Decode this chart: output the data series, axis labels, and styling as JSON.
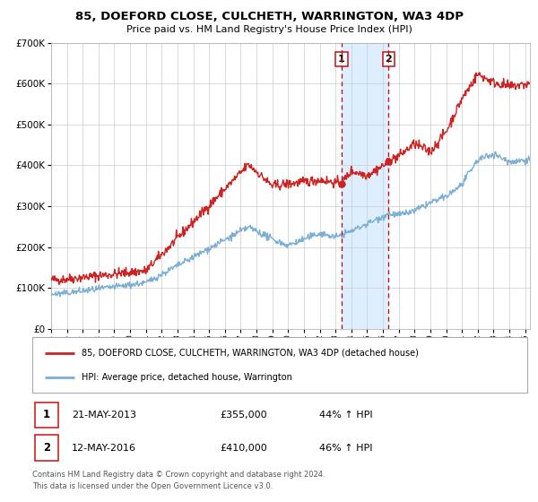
{
  "title": "85, DOEFORD CLOSE, CULCHETH, WARRINGTON, WA3 4DP",
  "subtitle": "Price paid vs. HM Land Registry's House Price Index (HPI)",
  "ylim": [
    0,
    700000
  ],
  "xlim_start": 1995.0,
  "xlim_end": 2025.3,
  "grid_color": "#cccccc",
  "sale1_date": 2013.385,
  "sale1_price": 355000,
  "sale2_date": 2016.36,
  "sale2_price": 410000,
  "shaded_region_color": "#ddeeff",
  "dashed_line_color": "#cc0000",
  "legend_label_red": "85, DOEFORD CLOSE, CULCHETH, WARRINGTON, WA3 4DP (detached house)",
  "legend_label_blue": "HPI: Average price, detached house, Warrington",
  "annotation1_date": "21-MAY-2013",
  "annotation1_price": "£355,000",
  "annotation1_hpi": "44% ↑ HPI",
  "annotation2_date": "12-MAY-2016",
  "annotation2_price": "£410,000",
  "annotation2_hpi": "46% ↑ HPI",
  "footer1": "Contains HM Land Registry data © Crown copyright and database right 2024.",
  "footer2": "This data is licensed under the Open Government Licence v3.0.",
  "red_line_color": "#cc2222",
  "blue_line_color": "#7bafd4"
}
